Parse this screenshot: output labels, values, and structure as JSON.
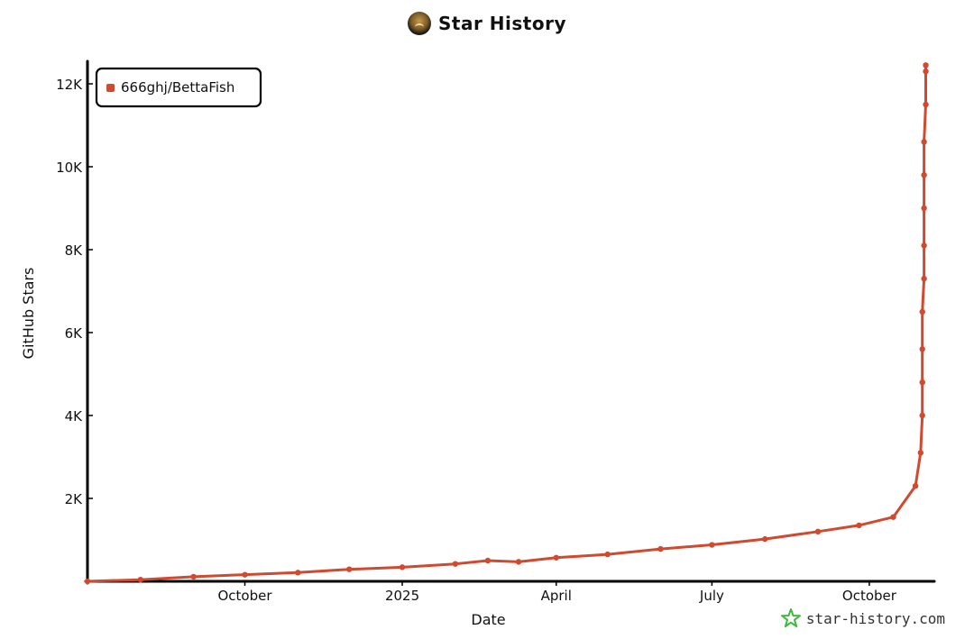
{
  "header": {
    "title": "Star History",
    "logo_icon": "avatar-icon"
  },
  "footer": {
    "brand": "star-history.com",
    "brand_icon": "star-history-logo-icon",
    "brand_color": "#3dbb3d"
  },
  "chart_data": {
    "type": "line",
    "title": "Star History",
    "xlabel": "Date",
    "ylabel": "GitHub Stars",
    "x_type": "date",
    "xlim": [
      "2024-07-01",
      "2025-11-08"
    ],
    "ylim": [
      0,
      12500
    ],
    "yticks": [
      2000,
      4000,
      6000,
      8000,
      10000,
      12000
    ],
    "ytick_labels": [
      "2K",
      "4K",
      "6K",
      "8K",
      "10K",
      "12K"
    ],
    "xticks": [
      "2024-10-01",
      "2025-01-01",
      "2025-04-01",
      "2025-07-01",
      "2025-10-01"
    ],
    "xtick_labels": [
      "October",
      "2025",
      "April",
      "July",
      "October"
    ],
    "legend_position": "top-left",
    "grid": false,
    "series": [
      {
        "name": "666ghj/BettaFish",
        "color": "#cf4a2f",
        "points": [
          {
            "x": "2024-07-01",
            "y": 0
          },
          {
            "x": "2024-08-01",
            "y": 40
          },
          {
            "x": "2024-09-01",
            "y": 110
          },
          {
            "x": "2024-10-01",
            "y": 160
          },
          {
            "x": "2024-11-01",
            "y": 210
          },
          {
            "x": "2024-12-01",
            "y": 290
          },
          {
            "x": "2025-01-01",
            "y": 340
          },
          {
            "x": "2025-02-01",
            "y": 420
          },
          {
            "x": "2025-02-20",
            "y": 500
          },
          {
            "x": "2025-03-10",
            "y": 470
          },
          {
            "x": "2025-04-01",
            "y": 570
          },
          {
            "x": "2025-05-01",
            "y": 650
          },
          {
            "x": "2025-06-01",
            "y": 780
          },
          {
            "x": "2025-07-01",
            "y": 880
          },
          {
            "x": "2025-08-01",
            "y": 1020
          },
          {
            "x": "2025-09-01",
            "y": 1200
          },
          {
            "x": "2025-09-25",
            "y": 1350
          },
          {
            "x": "2025-10-15",
            "y": 1550
          },
          {
            "x": "2025-10-28",
            "y": 2300
          },
          {
            "x": "2025-10-31",
            "y": 3100
          },
          {
            "x": "2025-11-01",
            "y": 4000
          },
          {
            "x": "2025-11-01",
            "y": 4800
          },
          {
            "x": "2025-11-01",
            "y": 5600
          },
          {
            "x": "2025-11-01",
            "y": 6500
          },
          {
            "x": "2025-11-02",
            "y": 7300
          },
          {
            "x": "2025-11-02",
            "y": 8100
          },
          {
            "x": "2025-11-02",
            "y": 9000
          },
          {
            "x": "2025-11-02",
            "y": 9800
          },
          {
            "x": "2025-11-02",
            "y": 10600
          },
          {
            "x": "2025-11-03",
            "y": 11500
          },
          {
            "x": "2025-11-03",
            "y": 12300
          },
          {
            "x": "2025-11-03",
            "y": 12450
          }
        ]
      }
    ]
  }
}
